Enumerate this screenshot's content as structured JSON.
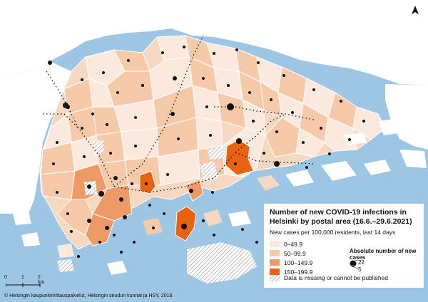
{
  "legend": {
    "title": "Number of new COVID-19 infections in Helsinki by postal area (16.6.–29.6.2021)",
    "subtitle": "New cases per 100,000 residents, last 14 days",
    "classes": [
      {
        "label": "0–49.9",
        "color": "#fbe9dd"
      },
      {
        "label": "50–99.9",
        "color": "#f6c9a8"
      },
      {
        "label": "100–149.9",
        "color": "#ee9a66"
      },
      {
        "label": "150–199.9",
        "color": "#e8620f"
      }
    ],
    "absolute_title": "Absolute number of new cases",
    "absolute_values": {
      "large": "22",
      "small": "5"
    },
    "missing_label": "Data is missing or cannot be published"
  },
  "scale": {
    "zero": "0",
    "one": "1",
    "two": "2 km"
  },
  "credit": "© Helsingin kaupunkimittauspalvelut, Helsingin seudun kunnat ja HSY, 2018.",
  "colors": {
    "water": "#9dc6e4",
    "neighbor_land": "#ffffff",
    "boundary": "#ffffff"
  },
  "icons": {
    "north": "north-arrow-icon"
  }
}
